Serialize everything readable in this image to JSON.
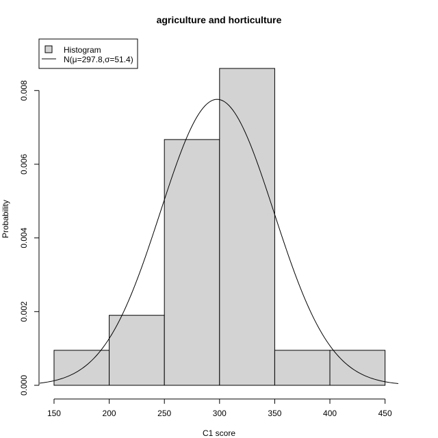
{
  "chart_data": {
    "type": "bar",
    "title": "agriculture and horticulture",
    "xlabel": "C1 score",
    "ylabel": "Probability",
    "bins": [
      {
        "x0": 150,
        "x1": 200,
        "value": 0.00095
      },
      {
        "x0": 200,
        "x1": 250,
        "value": 0.0019
      },
      {
        "x0": 250,
        "x1": 300,
        "value": 0.00667
      },
      {
        "x0": 300,
        "x1": 350,
        "value": 0.0086
      },
      {
        "x0": 350,
        "x1": 400,
        "value": 0.00095
      },
      {
        "x0": 400,
        "x1": 450,
        "value": 0.00095
      }
    ],
    "curve": {
      "label": "N(μ=297.8,σ=51.4)",
      "mean": 297.8,
      "sd": 51.4,
      "x_range": [
        137,
        462
      ]
    },
    "xlim": [
      137,
      462
    ],
    "ylim": [
      0,
      0.0086
    ],
    "x_ticks": [
      150,
      200,
      250,
      300,
      350,
      400,
      450
    ],
    "x_tick_labels": [
      "150",
      "200",
      "250",
      "300",
      "350",
      "400",
      "450"
    ],
    "y_ticks": [
      0,
      0.002,
      0.004,
      0.006,
      0.008
    ],
    "y_tick_labels": [
      "0.000",
      "0.002",
      "0.004",
      "0.006",
      "0.008"
    ],
    "grid": false,
    "legend": {
      "position": "top-left",
      "entries": [
        "Histogram",
        "N(μ=297.8,σ=51.4)"
      ]
    },
    "colors": {
      "bar_fill": "#d3d3d3",
      "bar_stroke": "#000000",
      "curve": "#000000"
    }
  }
}
